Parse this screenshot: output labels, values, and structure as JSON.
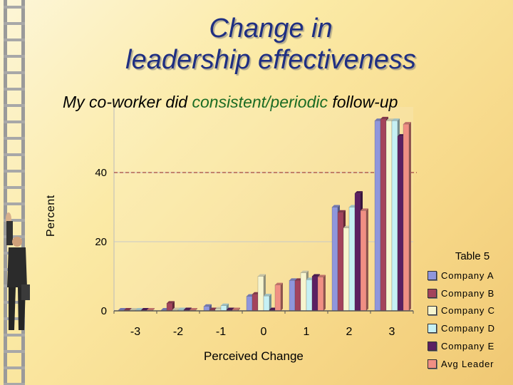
{
  "title_line1": "Change in",
  "title_line2": "leadership effectiveness",
  "subtitle": {
    "prefix": "My co-worker did ",
    "highlight": "consistent/periodic",
    "suffix": " follow-up"
  },
  "colors": {
    "title": "#1f2f82",
    "highlight": "#1a6b25",
    "reference_line": "#8b1c2c"
  },
  "chart_data": {
    "type": "bar",
    "title": "Table 5",
    "xlabel": "Perceived Change",
    "ylabel": "Percent",
    "categories": [
      "-3",
      "-2",
      "-1",
      "0",
      "1",
      "2",
      "3"
    ],
    "yticks": [
      "0",
      "20",
      "40"
    ],
    "ylim": [
      0,
      57
    ],
    "reference_line": 40,
    "series": [
      {
        "name": "Company A",
        "color": "#8f96dc",
        "values": [
          0.2,
          0.2,
          1.3,
          4.2,
          8.8,
          30,
          55
        ]
      },
      {
        "name": "Company B",
        "color": "#a3435c",
        "values": [
          0.2,
          2.2,
          0.3,
          4.8,
          8.8,
          28.5,
          55.5
        ]
      },
      {
        "name": "Company C",
        "color": "#f7f5cf",
        "values": [
          0.2,
          0.3,
          0.5,
          10,
          11,
          24,
          55
        ]
      },
      {
        "name": "Company D",
        "color": "#c6f0f4",
        "values": [
          0.2,
          0.3,
          1.5,
          4.3,
          9,
          30,
          55
        ]
      },
      {
        "name": "Company E",
        "color": "#5c1f62",
        "values": [
          0.2,
          0.3,
          0.3,
          0.3,
          10,
          34,
          50.5
        ]
      },
      {
        "name": "Avg Leader",
        "color": "#f08f84",
        "values": [
          0.2,
          0.2,
          0.3,
          7.5,
          9.8,
          29,
          54
        ]
      }
    ]
  }
}
